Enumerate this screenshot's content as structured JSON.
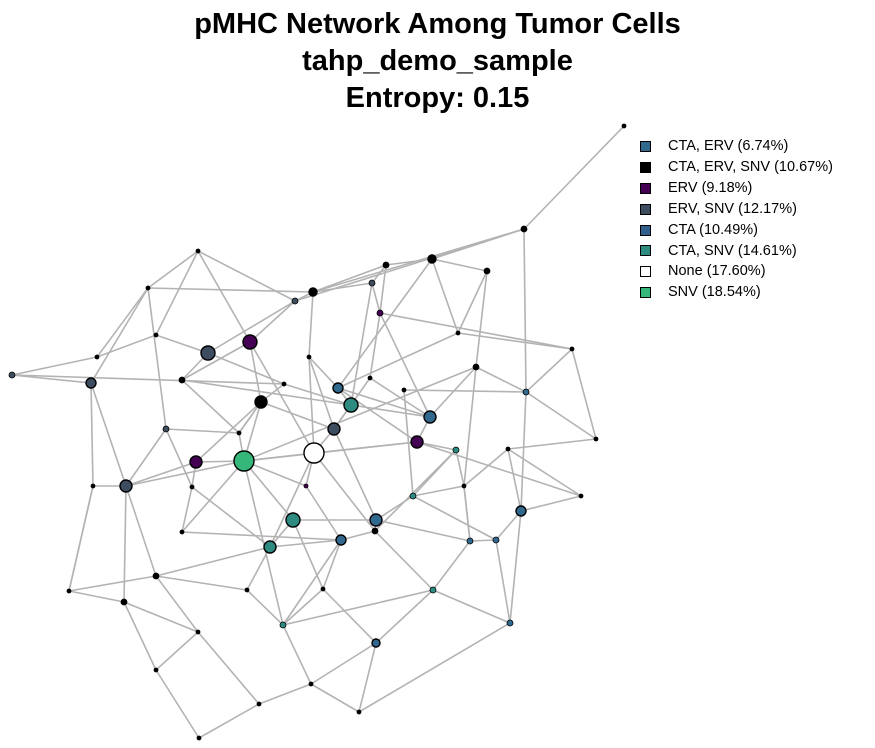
{
  "title": {
    "line1": "pMHC Network Among Tumor Cells",
    "line2": "tahp_demo_sample",
    "line3": "Entropy: 0.15"
  },
  "colors": {
    "edge": "#b3b3b3",
    "node_stroke": "#000000",
    "background": "#ffffff"
  },
  "legend": [
    {
      "label": "CTA, ERV (6.74%)",
      "color": "#31688e"
    },
    {
      "label": "CTA, ERV, SNV (10.67%)",
      "color": "#000000"
    },
    {
      "label": "ERV (9.18%)",
      "color": "#440154"
    },
    {
      "label": "ERV, SNV (12.17%)",
      "color": "#3d4c5e"
    },
    {
      "label": "CTA (10.49%)",
      "color": "#2f5f8a"
    },
    {
      "label": "CTA, SNV (14.61%)",
      "color": "#2e8b82"
    },
    {
      "label": "None (17.60%)",
      "color": "#ffffff"
    },
    {
      "label": "SNV (18.54%)",
      "color": "#35b779"
    }
  ]
}
